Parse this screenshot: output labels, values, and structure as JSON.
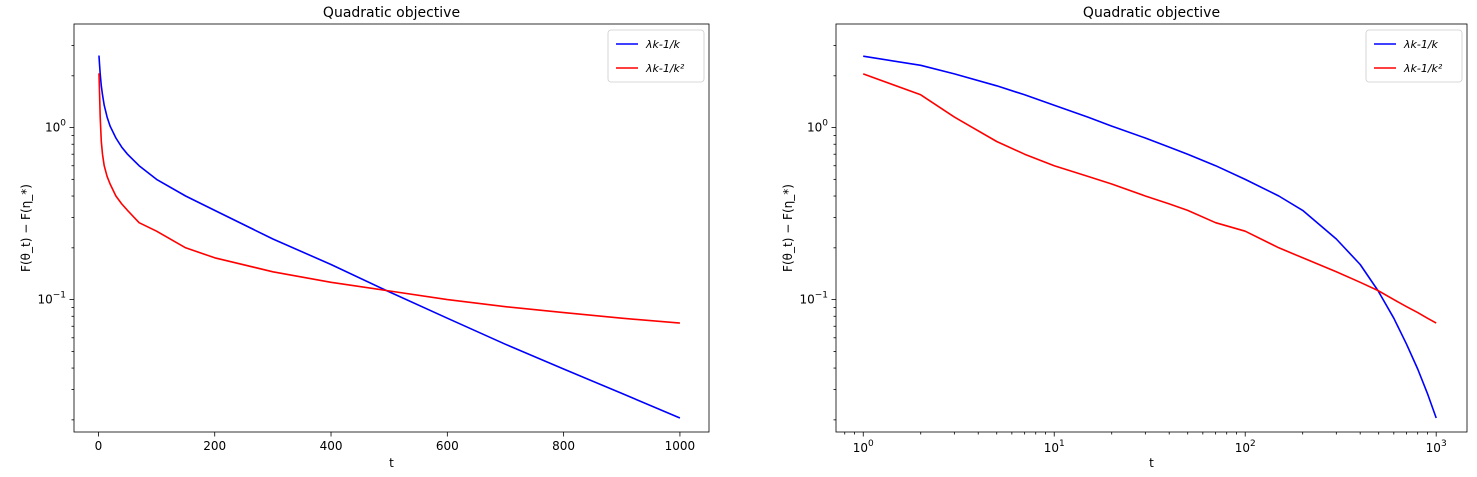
{
  "chart_data": [
    {
      "type": "line",
      "title": "Quadratic objective",
      "xlabel": "t",
      "ylabel": "F(θ_t) − F(η_*)",
      "xscale": "linear",
      "yscale": "log",
      "xlim": [
        -42,
        1050
      ],
      "ylim": [
        0.017,
        4.0
      ],
      "xticks": [
        0,
        200,
        400,
        600,
        800,
        1000
      ],
      "xtick_labels": [
        "0",
        "200",
        "400",
        "600",
        "800",
        "1000"
      ],
      "yticks": [
        0.1,
        1
      ],
      "ytick_base": "10",
      "ytick_exponents": [
        "−1",
        "0"
      ],
      "legend_position": "top-right",
      "series": [
        {
          "name": "λ_k-1/k",
          "legend_label": "λk-1/k",
          "color": "#0000ff",
          "x": [
            0,
            1,
            2,
            3,
            5,
            7,
            10,
            15,
            20,
            30,
            40,
            50,
            70,
            100,
            150,
            200,
            300,
            400,
            495,
            600,
            700,
            800,
            900,
            1000
          ],
          "y": [
            2.6,
            2.6,
            2.3,
            2.05,
            1.75,
            1.55,
            1.35,
            1.15,
            1.02,
            0.87,
            0.77,
            0.7,
            0.6,
            0.5,
            0.4,
            0.33,
            0.225,
            0.16,
            0.113,
            0.078,
            0.055,
            0.0395,
            0.0285,
            0.0205
          ]
        },
        {
          "name": "λ_k-1/k²",
          "legend_label": "λk-1/k²",
          "color": "#ff0000",
          "x": [
            0,
            1,
            2,
            3,
            5,
            7,
            10,
            15,
            20,
            30,
            40,
            50,
            70,
            100,
            150,
            200,
            300,
            400,
            495,
            600,
            700,
            800,
            900,
            1000
          ],
          "y": [
            2.05,
            2.05,
            1.55,
            1.15,
            0.83,
            0.7,
            0.6,
            0.52,
            0.47,
            0.4,
            0.36,
            0.33,
            0.28,
            0.25,
            0.2,
            0.175,
            0.145,
            0.126,
            0.113,
            0.1,
            0.091,
            0.084,
            0.078,
            0.073
          ]
        }
      ]
    },
    {
      "type": "line",
      "title": "Quadratic objective",
      "xlabel": "t",
      "ylabel": "F(θ_t) − F(η_*)",
      "xscale": "log",
      "yscale": "log",
      "xlim": [
        0.72,
        1450
      ],
      "ylim": [
        0.017,
        4.0
      ],
      "xticks": [
        1,
        10,
        100,
        1000
      ],
      "xtick_base": "10",
      "xtick_exponents": [
        "0",
        "1",
        "2",
        "3"
      ],
      "yticks": [
        0.1,
        1
      ],
      "ytick_base": "10",
      "ytick_exponents": [
        "−1",
        "0"
      ],
      "legend_position": "top-right",
      "series": [
        {
          "name": "λ_k-1/k",
          "legend_label": "λk-1/k",
          "color": "#0000ff",
          "x": [
            1,
            2,
            3,
            5,
            7,
            10,
            15,
            20,
            30,
            40,
            50,
            70,
            100,
            150,
            200,
            300,
            400,
            495,
            600,
            700,
            800,
            900,
            1000
          ],
          "y": [
            2.6,
            2.3,
            2.05,
            1.75,
            1.55,
            1.35,
            1.15,
            1.02,
            0.87,
            0.77,
            0.7,
            0.6,
            0.5,
            0.4,
            0.33,
            0.225,
            0.16,
            0.113,
            0.078,
            0.055,
            0.0395,
            0.0285,
            0.0205
          ]
        },
        {
          "name": "λ_k-1/k²",
          "legend_label": "λk-1/k²",
          "color": "#ff0000",
          "x": [
            1,
            2,
            3,
            5,
            7,
            10,
            15,
            20,
            30,
            40,
            50,
            70,
            100,
            150,
            200,
            300,
            400,
            495,
            600,
            700,
            800,
            900,
            1000
          ],
          "y": [
            2.05,
            1.55,
            1.15,
            0.83,
            0.7,
            0.6,
            0.52,
            0.47,
            0.4,
            0.36,
            0.33,
            0.28,
            0.25,
            0.2,
            0.175,
            0.145,
            0.126,
            0.113,
            0.1,
            0.091,
            0.084,
            0.078,
            0.073
          ]
        }
      ]
    }
  ]
}
